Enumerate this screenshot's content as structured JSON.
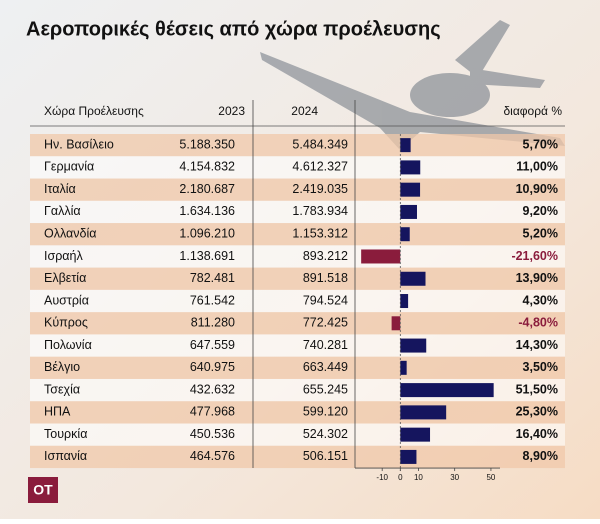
{
  "chart_data": {
    "type": "bar",
    "orientation": "horizontal",
    "title": "Αεροπορικές θέσεις από χώρα προέλευσης",
    "columns": [
      "Χώρα Προέλευσης",
      "2023",
      "2024",
      "διαφορά %"
    ],
    "categories": [
      "Ην. Βασίλειο",
      "Γερμανία",
      "Ιταλία",
      "Γαλλία",
      "Ολλανδία",
      "Ισραήλ",
      "Ελβετία",
      "Αυστρία",
      "Κύπρος",
      "Πολωνία",
      "Βέλγιο",
      "Τσεχία",
      "ΗΠΑ",
      "Τουρκία",
      "Ισπανία"
    ],
    "col_2023": [
      "5.188.350",
      "4.154.832",
      "2.180.687",
      "1.634.136",
      "1.096.210",
      "1.138.691",
      "782.481",
      "761.542",
      "811.280",
      "647.559",
      "640.975",
      "432.632",
      "477.968",
      "450.536",
      "464.576"
    ],
    "col_2024": [
      "5.484.349",
      "4.612.327",
      "2.419.035",
      "1.783.934",
      "1.153.312",
      "893.212",
      "891.518",
      "794.524",
      "772.425",
      "740.281",
      "663.449",
      "655.245",
      "599.120",
      "524.302",
      "506.151"
    ],
    "values": [
      5.7,
      11.0,
      10.9,
      9.2,
      5.2,
      -21.6,
      13.9,
      4.3,
      -4.8,
      14.3,
      3.5,
      51.5,
      25.3,
      16.4,
      8.9
    ],
    "value_labels": [
      "5,70%",
      "11,00%",
      "10,90%",
      "9,20%",
      "5,20%",
      "-21,60%",
      "13,90%",
      "4,30%",
      "-4,80%",
      "14,30%",
      "3,50%",
      "51,50%",
      "25,30%",
      "16,40%",
      "8,90%"
    ],
    "color": "#15155e",
    "negative_color": "#8a1c3c",
    "xlim": [
      -25,
      55
    ],
    "xticks": [
      -10,
      0,
      10,
      30,
      50
    ],
    "logo": "OT"
  }
}
